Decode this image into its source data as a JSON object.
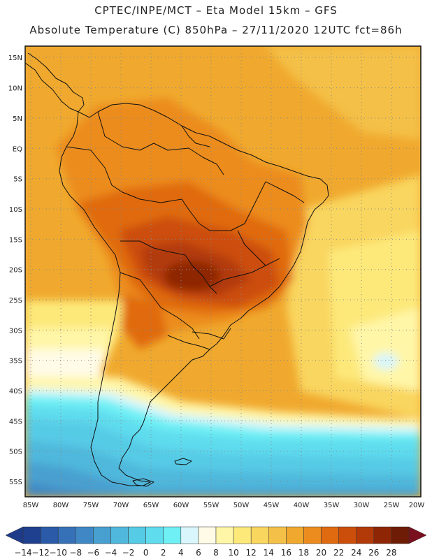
{
  "header": {
    "line1": "CPTEC/INPE/MCT –   Eta Model 15km – GFS",
    "line2": "Absolute Temperature (C) 850hPa – 27/11/2020 12UTC fct=86h"
  },
  "axes": {
    "lat_labels": [
      "15N",
      "10N",
      "5N",
      "EQ",
      "5S",
      "10S",
      "15S",
      "20S",
      "25S",
      "30S",
      "35S",
      "40S",
      "45S",
      "50S",
      "55S"
    ],
    "lon_labels": [
      "85W",
      "80W",
      "75W",
      "70W",
      "65W",
      "60W",
      "55W",
      "50W",
      "45W",
      "40W",
      "35W",
      "30W",
      "25W",
      "20W"
    ]
  },
  "colorbar": {
    "labels": [
      "-14",
      "-12",
      "-10",
      "-8",
      "-6",
      "-4",
      "-2",
      "0",
      "2",
      "4",
      "6",
      "8",
      "10",
      "12",
      "14",
      "16",
      "18",
      "20",
      "22",
      "24",
      "26",
      "28"
    ],
    "colors": [
      "#1f3f8f",
      "#2a5aa8",
      "#3671b8",
      "#3f88c5",
      "#48a0d0",
      "#50b8dc",
      "#56cbe6",
      "#5fdcee",
      "#6ff0f5",
      "#d8f6fb",
      "#fffbe6",
      "#fff6a8",
      "#fde97a",
      "#f9d65e",
      "#f4c047",
      "#f0a92e",
      "#ec8c1e",
      "#e06a10",
      "#cc4e0b",
      "#b23a08",
      "#8e2606",
      "#6e1c05"
    ],
    "low_arrow_color": "#1e3b8a",
    "high_arrow_color": "#7a0f1e"
  }
}
